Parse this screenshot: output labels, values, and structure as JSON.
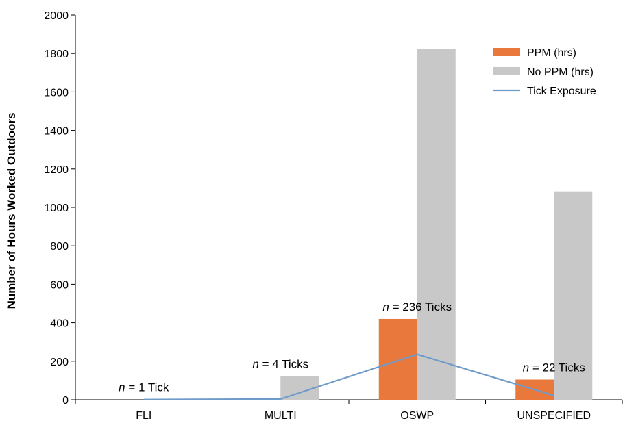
{
  "chart_data": {
    "type": "bar",
    "ylabel": "Number of Hours Worked Outdoors",
    "ylim": [
      0,
      2000
    ],
    "yticks": [
      "0",
      "200",
      "400",
      "600",
      "800",
      "1000",
      "1200",
      "1400",
      "1600",
      "1800",
      "2000"
    ],
    "categories": [
      "FLI",
      "MULTI",
      "OSWP",
      "UNSPECIFIED"
    ],
    "series": [
      {
        "name": "PPM (hrs)",
        "type": "bar",
        "color": "#E8783C",
        "values": [
          0,
          0,
          420,
          105
        ]
      },
      {
        "name": "No PPM (hrs)",
        "type": "bar",
        "color": "#C8C8C8",
        "values": [
          0,
          122,
          1822,
          1083
        ]
      },
      {
        "name": "Tick Exposure",
        "type": "line",
        "color": "#6F9BCB",
        "values": [
          1,
          4,
          236,
          22
        ]
      }
    ],
    "annotations": [
      {
        "category": "FLI",
        "italic": "n",
        "text": " = 1 Tick"
      },
      {
        "category": "MULTI",
        "italic": "n",
        "text": " = 4 Ticks"
      },
      {
        "category": "OSWP",
        "italic": "n",
        "text": " = 236 Ticks"
      },
      {
        "category": "UNSPECIFIED",
        "italic": "n",
        "text": " = 22 Ticks"
      }
    ],
    "legend_position": "top-right",
    "grid": false
  }
}
